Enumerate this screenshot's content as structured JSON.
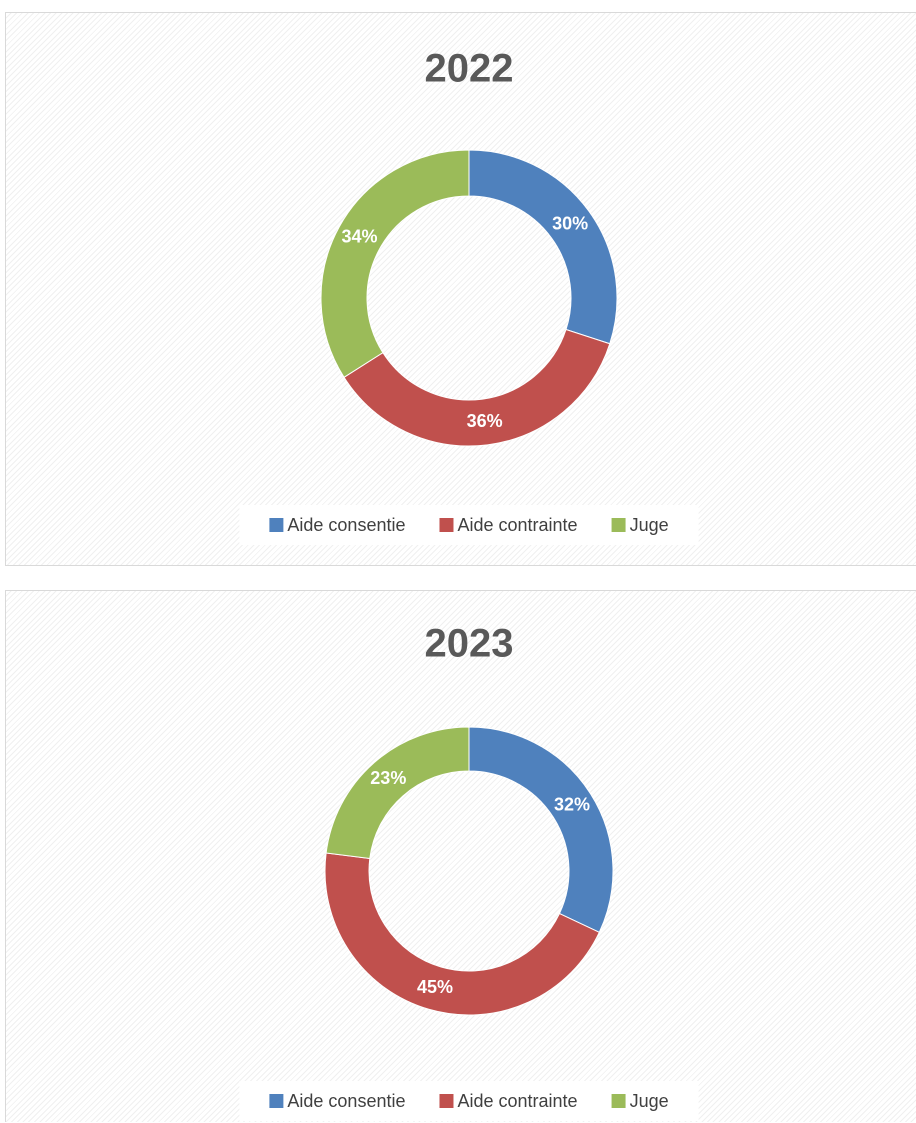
{
  "chart_data": [
    {
      "type": "pie",
      "title": "2022",
      "categories": [
        "Aide consentie",
        "Aide contrainte",
        "Juge"
      ],
      "values": [
        30,
        36,
        34
      ],
      "value_labels": [
        "30%",
        "36%",
        "34%"
      ],
      "colors": [
        "#4f81bd",
        "#c0504d",
        "#9bbb59"
      ],
      "legend": "bottom"
    },
    {
      "type": "pie",
      "title": "2023",
      "categories": [
        "Aide consentie",
        "Aide contrainte",
        "Juge"
      ],
      "values": [
        32,
        45,
        23
      ],
      "value_labels": [
        "32%",
        "45%",
        "23%"
      ],
      "colors": [
        "#4f81bd",
        "#c0504d",
        "#9bbb59"
      ],
      "legend": "bottom"
    }
  ]
}
